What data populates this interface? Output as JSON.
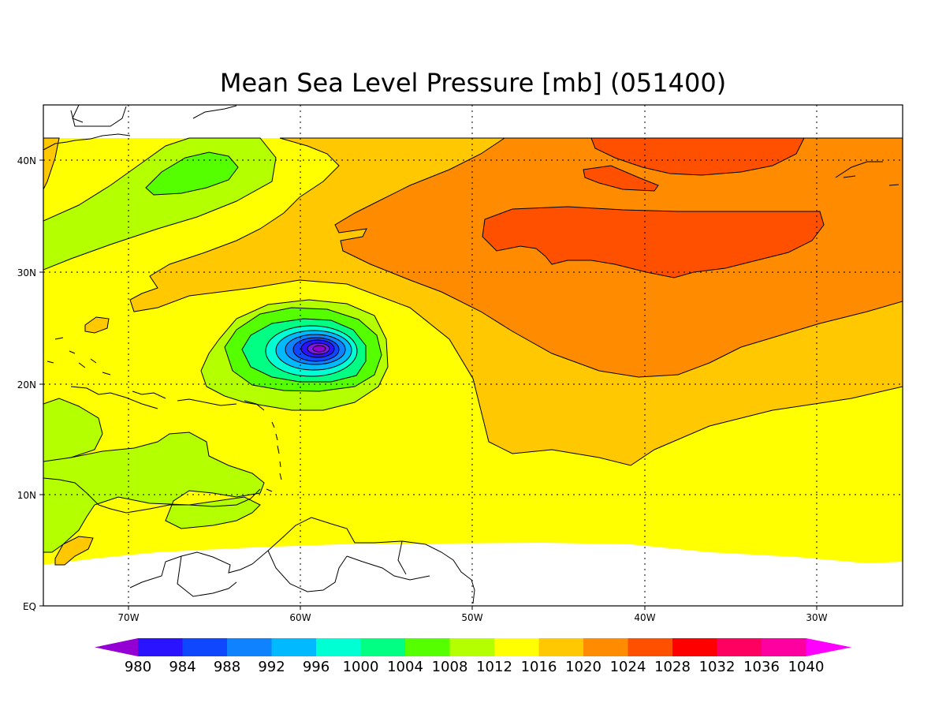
{
  "chart_data": {
    "type": "contour-map",
    "title": "Mean Sea Level Pressure [mb] (051400)",
    "x_ticks": [
      "70W",
      "60W",
      "50W",
      "40W",
      "30W"
    ],
    "y_ticks": [
      "40N",
      "30N",
      "20N",
      "10N",
      "EQ"
    ],
    "xlim": [
      "75W",
      "25W"
    ],
    "ylim": [
      "EQ",
      "45N"
    ],
    "grid": true,
    "levels": [
      980,
      984,
      988,
      992,
      996,
      1000,
      1004,
      1008,
      1012,
      1016,
      1020,
      1024,
      1028,
      1032,
      1036,
      1040
    ],
    "colors": [
      "#9400d3",
      "#2a14ff",
      "#0f46ff",
      "#0f82ff",
      "#00b9ff",
      "#00ffd2",
      "#00ff82",
      "#55ff00",
      "#b4ff00",
      "#ffff00",
      "#ffc800",
      "#ff8c00",
      "#ff5000",
      "#ff0000",
      "#ff0060",
      "#ff00a0",
      "#ff00ff"
    ],
    "features": {
      "low_center": {
        "lon": "59W",
        "lat": "23N",
        "min_pressure_level": 980
      },
      "high_centers": [
        {
          "lon": "40W",
          "lat": "33N",
          "level": 1028
        },
        {
          "lon": "40W",
          "lat": "42N",
          "level": 1028
        }
      ],
      "secondary_low": {
        "lon": "66W",
        "lat": "39N",
        "level": 1004
      }
    }
  }
}
